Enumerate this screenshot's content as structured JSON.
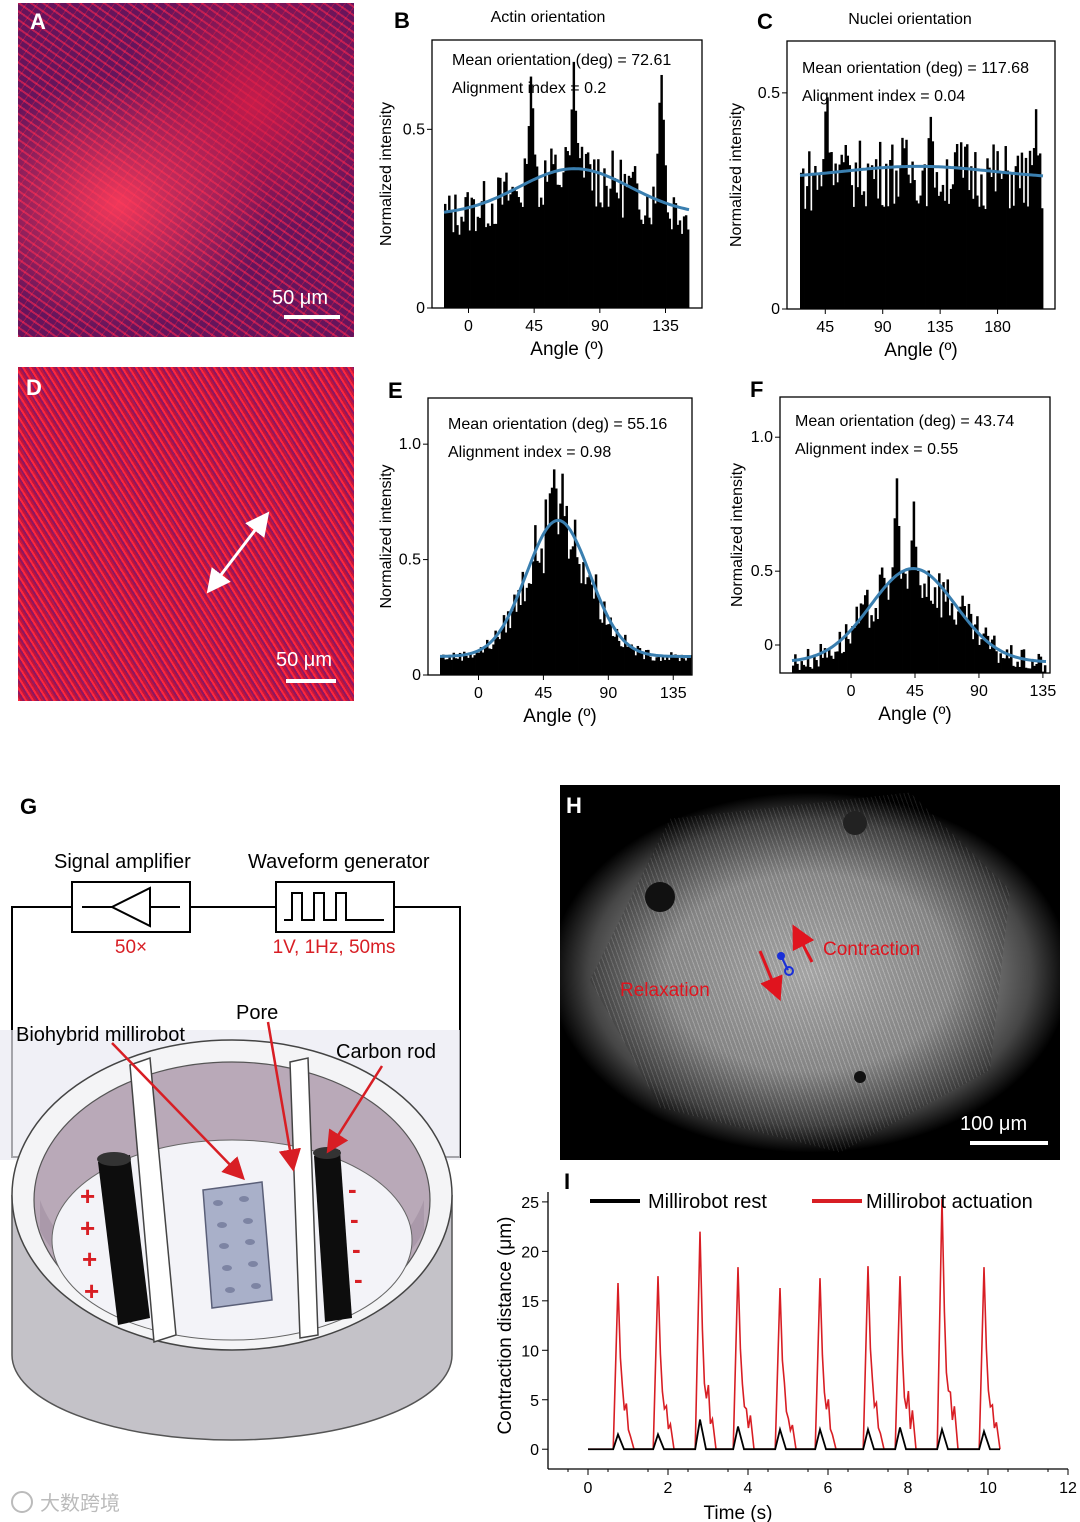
{
  "panels": {
    "A": {
      "letter": "A",
      "scale": "50 μm"
    },
    "B": {
      "letter": "B",
      "title": "Actin orientation",
      "mean": "Mean orientation (deg) = 72.61",
      "align": "Alignment index = 0.2"
    },
    "C": {
      "letter": "C",
      "title": "Nuclei orientation",
      "mean": "Mean orientation (deg) = 117.68",
      "align": "Alignment index = 0.04"
    },
    "D": {
      "letter": "D",
      "scale": "50 μm"
    },
    "E": {
      "letter": "E",
      "mean": "Mean orientation (deg) = 55.16",
      "align": "Alignment index = 0.98"
    },
    "F": {
      "letter": "F",
      "mean": "Mean orientation (deg) = 43.74",
      "align": "Alignment index = 0.55"
    },
    "G": {
      "letter": "G",
      "amplifier": "Signal amplifier",
      "waveform": "Waveform generator",
      "gain": "50×",
      "params": "1V, 1Hz, 50ms",
      "pore": "Pore",
      "robot": "Biohybrid millirobot",
      "rod": "Carbon rod",
      "plus": "+",
      "minus": "-"
    },
    "H": {
      "letter": "H",
      "contraction": "Contraction",
      "relaxation": "Relaxation",
      "scale": "100 μm"
    },
    "I": {
      "letter": "I"
    }
  },
  "common": {
    "ylabel": "Normalized intensity",
    "xlabel": "Angle (º)"
  },
  "watermark": "大数跨境",
  "colors": {
    "fit": "#3a7fb0",
    "red": "#d81e24",
    "hist": "#000000"
  },
  "chart_data": [
    {
      "id": "B",
      "type": "bar",
      "title": "Actin orientation",
      "xlabel": "Angle (º)",
      "ylabel": "Normalized intensity",
      "xlim": [
        -25,
        160
      ],
      "ylim": [
        0,
        0.75
      ],
      "xticks": [
        0,
        45,
        90,
        135
      ],
      "yticks": [
        0,
        0.5
      ],
      "ytick_labels": [
        "0",
        "0.5"
      ],
      "fit": {
        "mean": 72.61,
        "sd": 38,
        "base": 0.26,
        "amp": 0.13
      },
      "peaks": [
        [
          43,
          0.66
        ],
        [
          72,
          0.67
        ],
        [
          132,
          0.67
        ]
      ],
      "series": [
        {
          "name": "",
          "note": "histogram"
        }
      ]
    },
    {
      "id": "C",
      "type": "bar",
      "title": "Nuclei orientation",
      "xlabel": "Angle (º)",
      "ylabel": "Normalized intensity",
      "xlim": [
        15,
        225
      ],
      "ylim": [
        0,
        0.62
      ],
      "xticks": [
        45,
        90,
        135,
        180
      ],
      "yticks": [
        0,
        0.5
      ],
      "ytick_labels": [
        "0",
        "0.5"
      ],
      "fit": {
        "mean": 117.68,
        "sd": 60,
        "base": 0.3,
        "amp": 0.03
      },
      "peaks": [
        [
          46,
          0.52
        ],
        [
          128,
          0.45
        ],
        [
          210,
          0.45
        ]
      ],
      "series": [
        {
          "name": "",
          "note": "histogram"
        }
      ]
    },
    {
      "id": "E",
      "type": "bar",
      "xlabel": "Angle (º)",
      "ylabel": "Normalized intensity",
      "xlim": [
        -35,
        148
      ],
      "ylim": [
        0,
        1.2
      ],
      "xticks": [
        0,
        45,
        90,
        135
      ],
      "yticks": [
        0,
        0.5,
        1.0
      ],
      "ytick_labels": [
        "0",
        "0.5",
        "1.0"
      ],
      "fit": {
        "mean": 55.16,
        "sd": 22,
        "base": 0.08,
        "amp": 0.59
      },
      "peaks": [
        [
          52,
          0.93
        ],
        [
          58,
          0.88
        ]
      ],
      "series": [
        {
          "name": "",
          "note": "histogram"
        }
      ]
    },
    {
      "id": "F",
      "type": "bar",
      "xlabel": "Angle (º)",
      "ylabel": "Normalized intensity",
      "xlim": [
        -50,
        140
      ],
      "ylim": [
        0.12,
        1.15
      ],
      "xticks": [
        0,
        45,
        90,
        135
      ],
      "yticks": [
        0,
        0.5,
        1.0
      ],
      "ytick_labels": [
        "0",
        "0.5",
        "1.0"
      ],
      "fit": {
        "mean": 43.74,
        "sd": 30,
        "base": 0.16,
        "amp": 0.35
      },
      "peaks": [
        [
          32,
          0.84
        ],
        [
          44,
          0.74
        ]
      ],
      "series": [
        {
          "name": "",
          "note": "histogram"
        }
      ]
    },
    {
      "id": "I",
      "type": "line",
      "xlabel": "Time (s)",
      "ylabel": "Contraction distance (μm)",
      "xlim": [
        -1,
        12
      ],
      "ylim": [
        -2,
        26
      ],
      "xticks": [
        0,
        2,
        4,
        6,
        8,
        10,
        12
      ],
      "yticks": [
        0,
        5,
        10,
        15,
        20,
        25
      ],
      "series": [
        {
          "name": "Millirobot rest",
          "color": "#000000",
          "peaks": [
            [
              0.75,
              1.5
            ],
            [
              1.75,
              1.5
            ],
            [
              2.8,
              3.0
            ],
            [
              3.75,
              2.3
            ],
            [
              4.8,
              2.0
            ],
            [
              5.8,
              2.0
            ],
            [
              7.0,
              2.0
            ],
            [
              7.8,
              2.2
            ],
            [
              8.85,
              2.0
            ],
            [
              9.9,
              1.8
            ]
          ]
        },
        {
          "name": "Millirobot actuation",
          "color": "#d81e24",
          "peaks": [
            [
              0.75,
              16.8
            ],
            [
              1.75,
              17.5
            ],
            [
              2.8,
              22.0
            ],
            [
              3.75,
              18.4
            ],
            [
              4.8,
              16.3
            ],
            [
              5.8,
              17.3
            ],
            [
              7.0,
              18.5
            ],
            [
              7.8,
              17.5
            ],
            [
              8.85,
              25.3
            ],
            [
              9.9,
              18.4
            ]
          ]
        }
      ]
    }
  ]
}
